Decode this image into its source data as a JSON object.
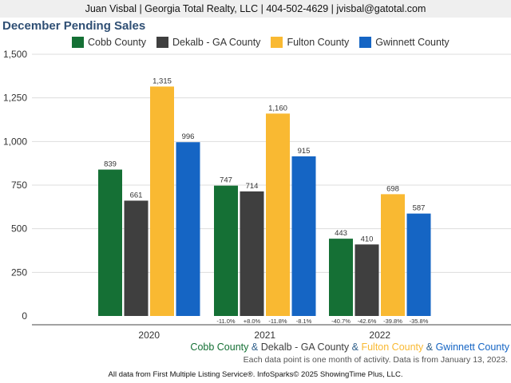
{
  "header": {
    "contact": "Juan Visbal | Georgia Total Realty, LLC | 404-502-4629 | jvisbal@gatotal.com"
  },
  "chart_data": {
    "type": "bar",
    "title": "December Pending Sales",
    "categories": [
      "2020",
      "2021",
      "2022"
    ],
    "ylim": [
      0,
      1500
    ],
    "yticks": [
      0,
      250,
      500,
      750,
      1000,
      1250,
      1500
    ],
    "ytick_labels": [
      "0",
      "250",
      "500",
      "750",
      "1,000",
      "1,250",
      "1,500"
    ],
    "grid": true,
    "legend_position": "top",
    "series": [
      {
        "name": "Cobb County",
        "color": "#157035",
        "values": [
          839,
          747,
          443
        ],
        "labels": [
          "839",
          "747",
          "443"
        ],
        "changes": [
          "",
          "-11.0%",
          "-40.7%"
        ]
      },
      {
        "name": "Dekalb - GA County",
        "color": "#3f3f3f",
        "values": [
          661,
          714,
          410
        ],
        "labels": [
          "661",
          "714",
          "410"
        ],
        "changes": [
          "",
          "+8.0%",
          "-42.6%"
        ]
      },
      {
        "name": "Fulton County",
        "color": "#f9b932",
        "values": [
          1315,
          1160,
          698
        ],
        "labels": [
          "1,315",
          "1,160",
          "698"
        ],
        "changes": [
          "",
          "-11.8%",
          "-39.8%"
        ]
      },
      {
        "name": "Gwinnett County",
        "color": "#1565c4",
        "values": [
          996,
          915,
          587
        ],
        "labels": [
          "996",
          "915",
          "587"
        ],
        "changes": [
          "",
          "-8.1%",
          "-35.8%"
        ]
      }
    ]
  },
  "footer": {
    "series_line": [
      {
        "text": "Cobb County",
        "color": "#157035"
      },
      {
        "text": " & ",
        "color": "#2f5f8a"
      },
      {
        "text": "Dekalb - GA County",
        "color": "#3f3f3f"
      },
      {
        "text": " & ",
        "color": "#2f5f8a"
      },
      {
        "text": "Fulton County",
        "color": "#f9b932"
      },
      {
        "text": " & ",
        "color": "#2f5f8a"
      },
      {
        "text": "Gwinnett County",
        "color": "#1565c4"
      }
    ],
    "note": "Each data point is one month of activity. Data is from January 13, 2023.",
    "credit": "All data from First Multiple Listing Service®. InfoSparks© 2025 ShowingTime Plus, LLC."
  }
}
